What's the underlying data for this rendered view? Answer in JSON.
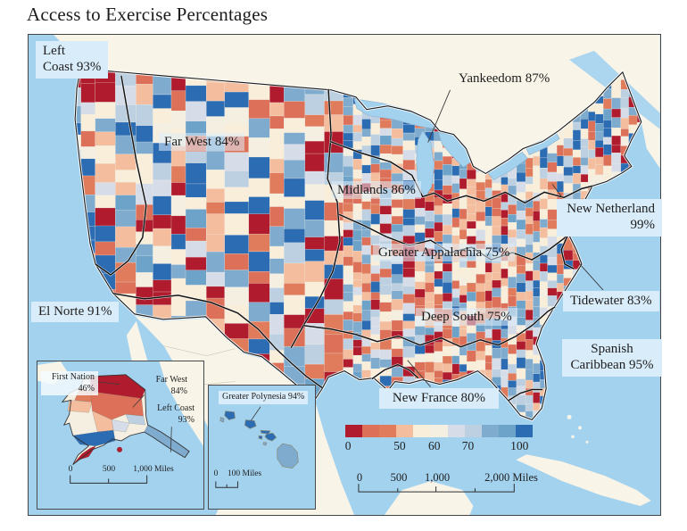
{
  "title": "Access to Exercise Percentages",
  "region_labels": {
    "left_coast": {
      "lines": [
        "Left",
        "Coast 93%"
      ]
    },
    "far_west": {
      "lines": [
        "Far West 84%"
      ]
    },
    "yankeedom": {
      "lines": [
        "Yankeedom 87%"
      ]
    },
    "midlands": {
      "lines": [
        "Midlands 86%"
      ]
    },
    "new_netherland": {
      "lines": [
        "New Netherland",
        "99%"
      ]
    },
    "greater_appalachia": {
      "lines": [
        "Greater Appalachia 75%"
      ]
    },
    "el_norte": {
      "lines": [
        "El Norte 91%"
      ]
    },
    "tidewater": {
      "lines": [
        "Tidewater 83%"
      ]
    },
    "deep_south": {
      "lines": [
        "Deep South 75%"
      ]
    },
    "spanish_caribbean": {
      "lines": [
        "Spanish",
        "Caribbean 95%"
      ]
    },
    "new_france": {
      "lines": [
        "New France 80%"
      ]
    }
  },
  "insets": {
    "alaska": {
      "labels": {
        "first_nation": {
          "lines": [
            "First Nation",
            "46%"
          ]
        },
        "far_west": {
          "lines": [
            "Far West",
            "84%"
          ]
        },
        "left_coast": {
          "lines": [
            "Left Coast",
            "93%"
          ]
        }
      },
      "scalebar_ticks": [
        "0",
        "500",
        "1,000 Miles"
      ]
    },
    "hawaii": {
      "labels": {
        "greater_polynesia": {
          "lines": [
            "Greater Polynesia 94%"
          ]
        }
      },
      "scalebar_ticks": [
        "0",
        "100 Miles"
      ]
    }
  },
  "legend": {
    "tick_labels": [
      "0",
      "50",
      "60",
      "70",
      "100"
    ],
    "tick_positions_pct": [
      1.5,
      29,
      47.5,
      65.5,
      93
    ],
    "colors": [
      "#b01c2e",
      "#dd7058",
      "#e07b5c",
      "#f3bd9e",
      "#f8eed9",
      "#f5efe2",
      "#d6dde8",
      "#bcd0e2",
      "#7fabce",
      "#6da2c9",
      "#2c6cb3"
    ]
  },
  "main_scalebar": {
    "ticks": [
      "0",
      "500",
      "1,000",
      "2,000 Miles"
    ]
  },
  "map_colors": {
    "ocean": "#a3d2ef",
    "foreign_land": "#f8f4e8",
    "label_box": "#d9ecf9",
    "frame": "#454545",
    "boundary": "#141414",
    "text": "#1d1d1d"
  },
  "mosaic": {
    "seed": 12
  },
  "chart_data": {
    "type": "choropleth_map",
    "title": "Access to Exercise Percentages",
    "unit": "percent",
    "regions": [
      {
        "name": "Left Coast",
        "value": 93
      },
      {
        "name": "Far West",
        "value": 84
      },
      {
        "name": "Yankeedom",
        "value": 87
      },
      {
        "name": "Midlands",
        "value": 86
      },
      {
        "name": "New Netherland",
        "value": 99
      },
      {
        "name": "Greater Appalachia",
        "value": 75
      },
      {
        "name": "El Norte",
        "value": 91
      },
      {
        "name": "Tidewater",
        "value": 83
      },
      {
        "name": "Deep South",
        "value": 75
      },
      {
        "name": "Spanish Caribbean",
        "value": 95
      },
      {
        "name": "New France",
        "value": 80
      },
      {
        "name": "First Nation",
        "value": 46
      },
      {
        "name": "Greater Polynesia",
        "value": 94
      }
    ],
    "legend_scale": {
      "tick_values": [
        0,
        50,
        60,
        70,
        100
      ]
    },
    "scalebars": {
      "main_miles": [
        0,
        500,
        1000,
        2000
      ],
      "alaska_miles": [
        0,
        500,
        1000
      ],
      "hawaii_miles": [
        0,
        100
      ]
    }
  }
}
